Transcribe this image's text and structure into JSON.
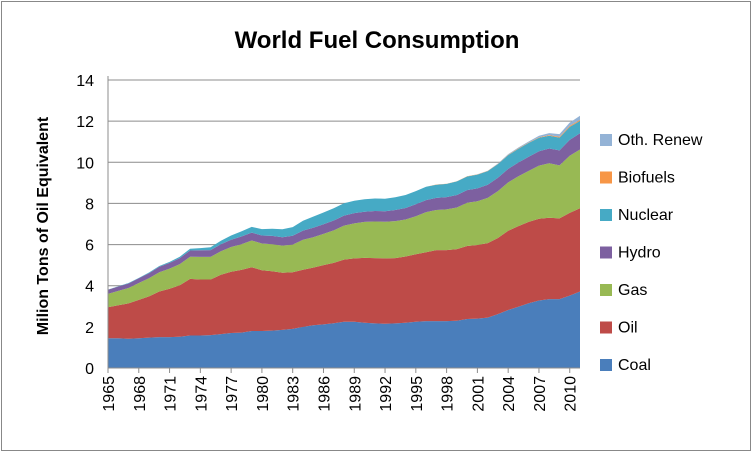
{
  "chart_data": {
    "type": "area",
    "stacked": true,
    "title": "World Fuel Consumption",
    "xlabel": "",
    "ylabel": "Milion Tons of Oil Equivalent",
    "ylim": [
      0,
      14
    ],
    "yticks": [
      0,
      2,
      4,
      6,
      8,
      10,
      12,
      14
    ],
    "xticks": [
      "1965",
      "1968",
      "1971",
      "1974",
      "1977",
      "1980",
      "1983",
      "1986",
      "1989",
      "1992",
      "1995",
      "1998",
      "2001",
      "2004",
      "2007",
      "2010"
    ],
    "grid": "horizontal",
    "legend_position": "right",
    "x": [
      1965,
      1966,
      1967,
      1968,
      1969,
      1970,
      1971,
      1972,
      1973,
      1974,
      1975,
      1976,
      1977,
      1978,
      1979,
      1980,
      1981,
      1982,
      1983,
      1984,
      1985,
      1986,
      1987,
      1988,
      1989,
      1990,
      1991,
      1992,
      1993,
      1994,
      1995,
      1996,
      1997,
      1998,
      1999,
      2000,
      2001,
      2002,
      2003,
      2004,
      2005,
      2006,
      2007,
      2008,
      2009,
      2010,
      2011
    ],
    "series": [
      {
        "name": "Coal",
        "color": "#4a7ebb",
        "values": [
          1.45,
          1.45,
          1.42,
          1.45,
          1.48,
          1.5,
          1.5,
          1.52,
          1.58,
          1.58,
          1.6,
          1.65,
          1.7,
          1.72,
          1.8,
          1.8,
          1.82,
          1.85,
          1.9,
          2.0,
          2.08,
          2.12,
          2.18,
          2.25,
          2.25,
          2.2,
          2.17,
          2.15,
          2.17,
          2.2,
          2.25,
          2.28,
          2.28,
          2.28,
          2.3,
          2.38,
          2.4,
          2.45,
          2.62,
          2.82,
          2.98,
          3.15,
          3.28,
          3.35,
          3.35,
          3.52,
          3.72
        ]
      },
      {
        "name": "Oil",
        "color": "#be4b48",
        "values": [
          1.5,
          1.6,
          1.72,
          1.86,
          2.0,
          2.22,
          2.35,
          2.5,
          2.75,
          2.72,
          2.7,
          2.88,
          2.98,
          3.05,
          3.1,
          2.95,
          2.88,
          2.78,
          2.75,
          2.78,
          2.8,
          2.88,
          2.93,
          3.02,
          3.08,
          3.15,
          3.17,
          3.18,
          3.17,
          3.22,
          3.28,
          3.35,
          3.45,
          3.45,
          3.48,
          3.55,
          3.58,
          3.62,
          3.7,
          3.85,
          3.92,
          3.95,
          3.98,
          3.95,
          3.92,
          4.02,
          4.05
        ]
      },
      {
        "name": "Gas",
        "color": "#98b954",
        "values": [
          0.65,
          0.7,
          0.75,
          0.82,
          0.88,
          0.93,
          0.98,
          1.03,
          1.08,
          1.1,
          1.1,
          1.15,
          1.2,
          1.25,
          1.3,
          1.3,
          1.32,
          1.32,
          1.35,
          1.45,
          1.48,
          1.52,
          1.58,
          1.65,
          1.7,
          1.75,
          1.78,
          1.78,
          1.8,
          1.8,
          1.85,
          1.95,
          1.95,
          1.98,
          2.02,
          2.1,
          2.13,
          2.2,
          2.28,
          2.35,
          2.42,
          2.48,
          2.58,
          2.65,
          2.58,
          2.78,
          2.85
        ]
      },
      {
        "name": "Hydro",
        "color": "#7d60a0",
        "values": [
          0.2,
          0.21,
          0.22,
          0.23,
          0.25,
          0.27,
          0.28,
          0.29,
          0.3,
          0.32,
          0.33,
          0.34,
          0.35,
          0.37,
          0.38,
          0.39,
          0.4,
          0.41,
          0.43,
          0.45,
          0.46,
          0.47,
          0.48,
          0.49,
          0.5,
          0.5,
          0.51,
          0.51,
          0.54,
          0.56,
          0.58,
          0.58,
          0.59,
          0.6,
          0.61,
          0.62,
          0.62,
          0.64,
          0.65,
          0.66,
          0.67,
          0.69,
          0.7,
          0.72,
          0.73,
          0.77,
          0.79
        ]
      },
      {
        "name": "Nuclear",
        "color": "#46aac5",
        "values": [
          0.01,
          0.01,
          0.02,
          0.02,
          0.03,
          0.04,
          0.05,
          0.07,
          0.09,
          0.11,
          0.14,
          0.17,
          0.21,
          0.25,
          0.28,
          0.31,
          0.35,
          0.38,
          0.42,
          0.48,
          0.54,
          0.57,
          0.6,
          0.6,
          0.6,
          0.6,
          0.61,
          0.61,
          0.62,
          0.63,
          0.64,
          0.65,
          0.64,
          0.64,
          0.66,
          0.66,
          0.67,
          0.66,
          0.66,
          0.67,
          0.67,
          0.67,
          0.65,
          0.62,
          0.62,
          0.63,
          0.6
        ]
      },
      {
        "name": "Biofuels",
        "color": "#f79646",
        "values": [
          0,
          0,
          0,
          0,
          0,
          0,
          0,
          0,
          0,
          0,
          0,
          0,
          0,
          0,
          0,
          0,
          0,
          0,
          0,
          0,
          0,
          0,
          0,
          0,
          0,
          0,
          0,
          0,
          0,
          0,
          0,
          0,
          0.01,
          0.01,
          0.01,
          0.01,
          0.01,
          0.01,
          0.01,
          0.02,
          0.02,
          0.02,
          0.03,
          0.03,
          0.04,
          0.05,
          0.05
        ]
      },
      {
        "name": "Oth. Renew",
        "color": "#94b3d6",
        "values": [
          0,
          0,
          0,
          0,
          0,
          0,
          0,
          0,
          0,
          0,
          0,
          0,
          0,
          0,
          0,
          0,
          0,
          0,
          0,
          0,
          0,
          0,
          0,
          0,
          0,
          0,
          0,
          0,
          0,
          0,
          0,
          0,
          0,
          0,
          0,
          0,
          0.01,
          0.01,
          0.02,
          0.03,
          0.04,
          0.05,
          0.07,
          0.1,
          0.13,
          0.16,
          0.2
        ]
      }
    ]
  }
}
